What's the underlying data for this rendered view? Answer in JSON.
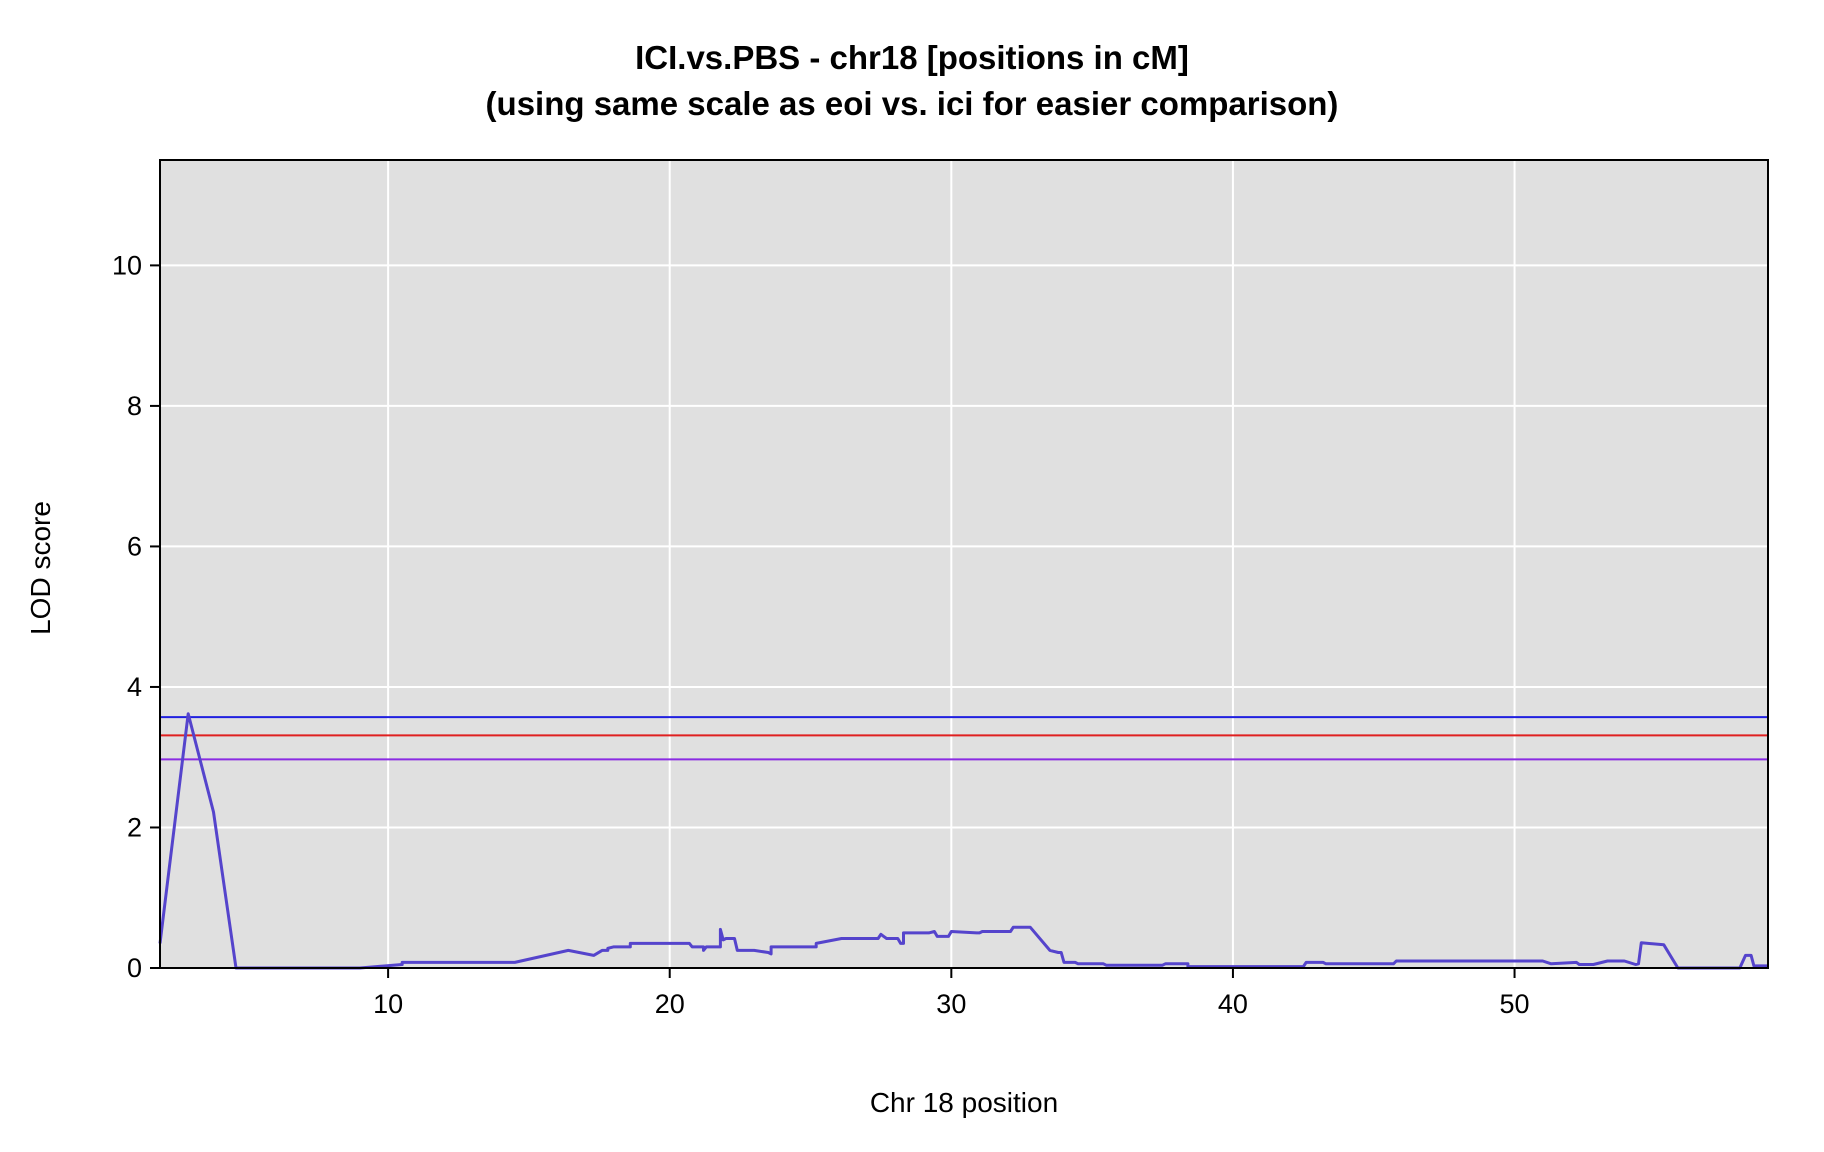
{
  "chart_data": {
    "type": "line",
    "title": "ICI.vs.PBS - chr18 [positions in cM]",
    "subtitle": "(using same scale as eoi vs. ici for easier comparison)",
    "xlabel": "Chr 18 position",
    "ylabel": "LOD score",
    "xlim": [
      1.9,
      59.0
    ],
    "ylim": [
      0,
      11.5
    ],
    "x_ticks": [
      10,
      20,
      30,
      40,
      50
    ],
    "y_ticks": [
      0,
      2,
      4,
      6,
      8,
      10
    ],
    "grid": true,
    "background_color": "#e0e0e0",
    "thresholds": [
      {
        "value": 3.57,
        "color": "#2020e0"
      },
      {
        "value": 3.31,
        "color": "#e02020"
      },
      {
        "value": 2.97,
        "color": "#8a2be2"
      }
    ],
    "series": [
      {
        "color": "#5544cc",
        "x": [
          1.9,
          2.9,
          3.8,
          4.6,
          9.0,
          10.5,
          10.5,
          14.5,
          16.4,
          17.3,
          17.6,
          17.8,
          17.8,
          18.0,
          18.1,
          18.6,
          18.6,
          20.7,
          20.8,
          21.2,
          21.2,
          21.3,
          21.8,
          21.8,
          21.9,
          21.9,
          22.0,
          22.0,
          22.3,
          22.4,
          23.0,
          23.0,
          23.5,
          23.6,
          23.6,
          25.2,
          25.2,
          26.1,
          27.4,
          27.5,
          27.6,
          27.7,
          28.1,
          28.2,
          28.3,
          28.3,
          29.2,
          29.4,
          29.5,
          29.9,
          30.0,
          30.9,
          31.0,
          31.1,
          32.1,
          32.2,
          32.8,
          33.5,
          33.8,
          33.9,
          34.0,
          34.4,
          34.5,
          35.4,
          35.5,
          37.5,
          37.6,
          38.4,
          38.4,
          42.5,
          42.6,
          43.2,
          43.3,
          45.7,
          45.8,
          51.0,
          51.3,
          52.2,
          52.3,
          52.8,
          53.3,
          53.9,
          54.3,
          54.4,
          54.5,
          55.3,
          55.8,
          58.0,
          58.2,
          58.4,
          58.5,
          59.0
        ],
        "y": [
          0.35,
          3.62,
          2.22,
          0.0,
          0.0,
          0.05,
          0.08,
          0.08,
          0.25,
          0.18,
          0.25,
          0.25,
          0.28,
          0.3,
          0.3,
          0.3,
          0.35,
          0.35,
          0.3,
          0.3,
          0.25,
          0.3,
          0.3,
          0.55,
          0.4,
          0.4,
          0.42,
          0.42,
          0.42,
          0.25,
          0.25,
          0.25,
          0.22,
          0.2,
          0.3,
          0.3,
          0.35,
          0.42,
          0.42,
          0.48,
          0.45,
          0.42,
          0.42,
          0.35,
          0.35,
          0.5,
          0.5,
          0.52,
          0.45,
          0.45,
          0.52,
          0.5,
          0.5,
          0.52,
          0.52,
          0.58,
          0.58,
          0.25,
          0.22,
          0.22,
          0.08,
          0.08,
          0.06,
          0.06,
          0.04,
          0.04,
          0.06,
          0.06,
          0.02,
          0.02,
          0.08,
          0.08,
          0.06,
          0.06,
          0.1,
          0.1,
          0.06,
          0.08,
          0.05,
          0.05,
          0.1,
          0.1,
          0.05,
          0.06,
          0.36,
          0.33,
          0.0,
          0.0,
          0.18,
          0.18,
          0.03,
          0.03
        ]
      }
    ]
  }
}
